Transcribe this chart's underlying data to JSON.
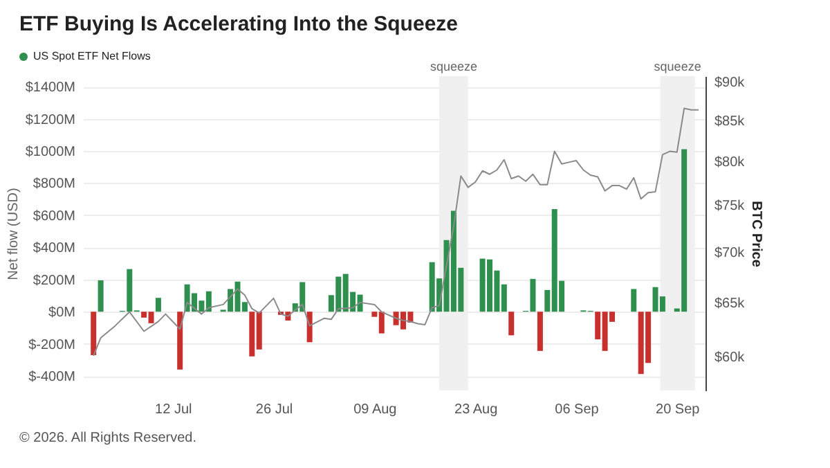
{
  "chart_data": {
    "type": "bar",
    "title": "ETF Buying Is Accelerating Into the Squeeze",
    "ylabel": "Net flow (USD)",
    "y2label": "BTC Price",
    "legend": "top left",
    "grid": "y",
    "log": "y2",
    "annotations": [
      "© 2026. All Rights Reserved."
    ],
    "xlim": [
      "--06-30T12:00",
      "--09-23"
    ],
    "xticks": [
      {
        "value": "--07-12",
        "label": "12 Jul"
      },
      {
        "value": "--07-26",
        "label": "26 Jul"
      },
      {
        "value": "--08-09",
        "label": "09 Aug"
      },
      {
        "value": "--08-23",
        "label": "23 Aug"
      },
      {
        "value": "--09-06",
        "label": "06 Sep"
      },
      {
        "value": "--09-20",
        "label": "20 Sep"
      }
    ],
    "ylim": [
      -490,
      1465
    ],
    "yticks": [
      {
        "value": -400,
        "label": "$-400M"
      },
      {
        "value": -200,
        "label": "$-200M"
      },
      {
        "value": 0,
        "label": "$0M"
      },
      {
        "value": 200,
        "label": "$200M"
      },
      {
        "value": 400,
        "label": "$400M"
      },
      {
        "value": 600,
        "label": "$600M"
      },
      {
        "value": 800,
        "label": "$800M"
      },
      {
        "value": 1000,
        "label": "$1000M"
      },
      {
        "value": 1200,
        "label": "$1200M"
      },
      {
        "value": 1400,
        "label": "$1400M"
      }
    ],
    "y2lim": [
      57100,
      90700
    ],
    "y2ticks": [
      {
        "value": 60000,
        "label": "$60k"
      },
      {
        "value": 65000,
        "label": "$65k"
      },
      {
        "value": 70000,
        "label": "$70k"
      },
      {
        "value": 75000,
        "label": "$75k"
      },
      {
        "value": 80000,
        "label": "$80k"
      },
      {
        "value": 85000,
        "label": "$85k"
      },
      {
        "value": 90000,
        "label": "$90k"
      }
    ],
    "bands": [
      {
        "axis": "x",
        "from": "--08-18",
        "to": "--08-22",
        "label": "squeeze",
        "color": "#f0f0f0"
      },
      {
        "axis": "x",
        "from": "--09-17T16:00",
        "to": "--09-22T12:00",
        "label": "squeeze",
        "color": "#f0f0f0"
      }
    ],
    "series": [
      {
        "name": "US Spot ETF Net Flows",
        "type": "bar",
        "x": [
          "--07-01",
          "--07-02",
          "--07-05",
          "--07-06",
          "--07-07",
          "--07-08",
          "--07-09",
          "--07-10",
          "--07-13",
          "--07-14",
          "--07-15",
          "--07-16",
          "--07-17",
          "--07-19",
          "--07-20",
          "--07-21",
          "--07-22",
          "--07-23",
          "--07-24",
          "--07-27",
          "--07-28",
          "--07-29",
          "--07-30",
          "--07-31",
          "--08-03",
          "--08-04",
          "--08-05",
          "--08-06",
          "--08-07",
          "--08-09",
          "--08-10",
          "--08-12",
          "--08-13",
          "--08-14",
          "--08-17",
          "--08-18",
          "--08-19",
          "--08-20",
          "--08-21",
          "--08-24",
          "--08-25",
          "--08-26",
          "--08-27",
          "--08-28",
          "--08-30",
          "--08-31",
          "--09-01",
          "--09-02",
          "--09-03",
          "--09-04",
          "--09-07",
          "--09-08",
          "--09-09",
          "--09-10",
          "--09-11",
          "--09-14",
          "--09-15",
          "--09-16",
          "--09-17",
          "--09-18",
          "--09-20",
          "--09-21"
        ],
        "values": [
          -270,
          195,
          5,
          265,
          8,
          -37,
          -72,
          86,
          -360,
          170,
          115,
          69,
          127,
          12,
          141,
          187,
          60,
          -278,
          -235,
          -20,
          -55,
          52,
          184,
          -190,
          103,
          218,
          235,
          123,
          106,
          -32,
          -135,
          -84,
          -110,
          -68,
          308,
          207,
          446,
          627,
          273,
          330,
          325,
          256,
          170,
          -147,
          5,
          204,
          -244,
          135,
          638,
          192,
          8,
          5,
          -172,
          -244,
          -63,
          141,
          -388,
          -319,
          153,
          95,
          20,
          1011
        ],
        "colors": [
          "#c8302e",
          "#2f8f4e",
          "#2f8f4e",
          "#2f8f4e",
          "#2f8f4e",
          "#c8302e",
          "#c8302e",
          "#2f8f4e",
          "#c8302e",
          "#2f8f4e",
          "#2f8f4e",
          "#2f8f4e",
          "#2f8f4e",
          "#2f8f4e",
          "#2f8f4e",
          "#2f8f4e",
          "#2f8f4e",
          "#c8302e",
          "#c8302e",
          "#c8302e",
          "#c8302e",
          "#2f8f4e",
          "#2f8f4e",
          "#c8302e",
          "#2f8f4e",
          "#2f8f4e",
          "#2f8f4e",
          "#2f8f4e",
          "#2f8f4e",
          "#c8302e",
          "#c8302e",
          "#c8302e",
          "#c8302e",
          "#c8302e",
          "#2f8f4e",
          "#2f8f4e",
          "#2f8f4e",
          "#2f8f4e",
          "#2f8f4e",
          "#2f8f4e",
          "#2f8f4e",
          "#2f8f4e",
          "#2f8f4e",
          "#c8302e",
          "#2f8f4e",
          "#2f8f4e",
          "#c8302e",
          "#2f8f4e",
          "#2f8f4e",
          "#2f8f4e",
          "#2f8f4e",
          "#2f8f4e",
          "#c8302e",
          "#c8302e",
          "#c8302e",
          "#2f8f4e",
          "#c8302e",
          "#c8302e",
          "#2f8f4e",
          "#2f8f4e",
          "#2f8f4e",
          "#2f8f4e"
        ]
      },
      {
        "type": "line",
        "axis": "y2",
        "color": "#8a8a8a",
        "x": [
          "--07-01",
          "--07-02",
          "--07-04",
          "--07-06",
          "--07-08",
          "--07-10",
          "--07-11",
          "--07-13",
          "--07-14",
          "--07-16",
          "--07-17",
          "--07-19",
          "--07-21",
          "--07-22",
          "--07-23",
          "--07-24",
          "--07-26",
          "--07-27",
          "--07-28",
          "--07-29",
          "--07-30",
          "--07-31",
          "--08-02",
          "--08-03",
          "--08-04",
          "--08-06",
          "--08-07",
          "--08-09",
          "--08-10",
          "--08-12",
          "--08-13",
          "--08-14",
          "--08-15",
          "--08-16",
          "--08-17",
          "--08-18",
          "--08-19",
          "--08-20",
          "--08-21",
          "--08-22",
          "--08-23",
          "--08-24",
          "--08-25",
          "--08-26",
          "--08-27",
          "--08-28",
          "--08-29",
          "--08-30",
          "--08-31",
          "--09-01",
          "--09-02",
          "--09-03",
          "--09-04",
          "--09-05",
          "--09-06",
          "--09-07",
          "--09-08",
          "--09-09",
          "--09-10",
          "--09-11",
          "--09-12",
          "--09-13",
          "--09-14",
          "--09-15",
          "--09-16",
          "--09-17",
          "--09-18",
          "--09-19",
          "--09-20",
          "--09-21",
          "--09-22",
          "--09-23"
        ],
        "values": [
          60100,
          61700,
          62800,
          64100,
          62300,
          63200,
          63900,
          62500,
          65000,
          63900,
          64500,
          64800,
          66300,
          65700,
          64400,
          64000,
          65400,
          63900,
          63700,
          64300,
          64800,
          62800,
          63500,
          63400,
          64400,
          64500,
          65000,
          64800,
          64100,
          63500,
          63300,
          63200,
          63000,
          62900,
          64500,
          64700,
          68600,
          72700,
          78300,
          77000,
          77600,
          78900,
          78500,
          79000,
          80200,
          78000,
          78300,
          77700,
          78500,
          77300,
          77300,
          81200,
          79700,
          79900,
          80100,
          79000,
          78400,
          78200,
          76600,
          77200,
          77200,
          76800,
          78100,
          75700,
          76400,
          76500,
          80800,
          81200,
          81100,
          86500,
          86300,
          86300
        ]
      }
    ]
  }
}
